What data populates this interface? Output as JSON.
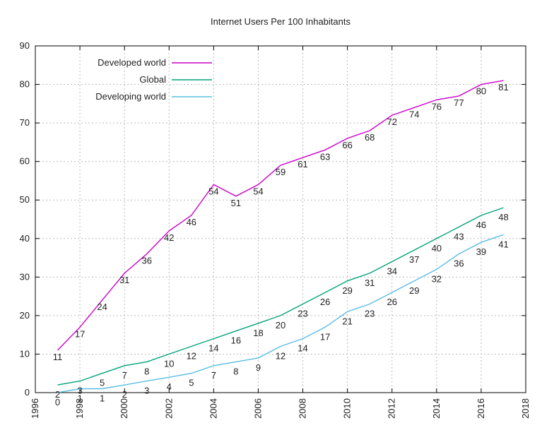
{
  "chart_data": {
    "type": "line",
    "title": "Internet Users Per 100 Inhabitants",
    "xlabel": "",
    "ylabel": "",
    "xlim": [
      1996,
      2018
    ],
    "ylim": [
      0,
      90
    ],
    "x_ticks": [
      "1996",
      "1998",
      "2000",
      "2002",
      "2004",
      "2006",
      "2008",
      "2010",
      "2012",
      "2014",
      "2016",
      "2018"
    ],
    "y_ticks": [
      "0",
      "10",
      "20",
      "30",
      "40",
      "50",
      "60",
      "70",
      "80",
      "90"
    ],
    "grid": true,
    "legend_position": "top-left",
    "x": [
      1997,
      1998,
      1999,
      2000,
      2001,
      2002,
      2003,
      2004,
      2005,
      2006,
      2007,
      2008,
      2009,
      2010,
      2011,
      2012,
      2013,
      2014,
      2015,
      2016,
      2017
    ],
    "series": [
      {
        "name": "Developed world",
        "color": "#cc00cc",
        "values": [
          11,
          17,
          24,
          31,
          36,
          42,
          46,
          54,
          51,
          54,
          59,
          61,
          63,
          66,
          68,
          72,
          74,
          76,
          77,
          80,
          81
        ],
        "labels": [
          "11",
          "17",
          "24",
          "31",
          "36",
          "42",
          "46",
          "54",
          "51",
          "54",
          "59",
          "61",
          "63",
          "66",
          "68",
          "72",
          "74",
          "76",
          "77",
          "80",
          "81"
        ]
      },
      {
        "name": "Global",
        "color": "#00a37a",
        "values": [
          2,
          3,
          5,
          7,
          8,
          10,
          12,
          14,
          16,
          18,
          20,
          23,
          26,
          29,
          31,
          34,
          37,
          40,
          43,
          46,
          48
        ],
        "labels": [
          "2",
          "3",
          "5",
          "7",
          "8",
          "10",
          "12",
          "14",
          "16",
          "18",
          "20",
          "23",
          "26",
          "29",
          "31",
          "34",
          "37",
          "40",
          "43",
          "46",
          "48"
        ]
      },
      {
        "name": "Developing world",
        "color": "#5bbde4",
        "values": [
          0,
          1,
          1,
          2,
          3,
          4,
          5,
          7,
          8,
          9,
          12,
          14,
          17,
          21,
          23,
          26,
          29,
          32,
          36,
          39,
          41
        ],
        "labels": [
          "0",
          "1",
          "1",
          "2",
          "3",
          "4",
          "5",
          "7",
          "8",
          "9",
          "12",
          "14",
          "17",
          "21",
          "23",
          "26",
          "29",
          "32",
          "36",
          "39",
          "41"
        ]
      }
    ]
  }
}
